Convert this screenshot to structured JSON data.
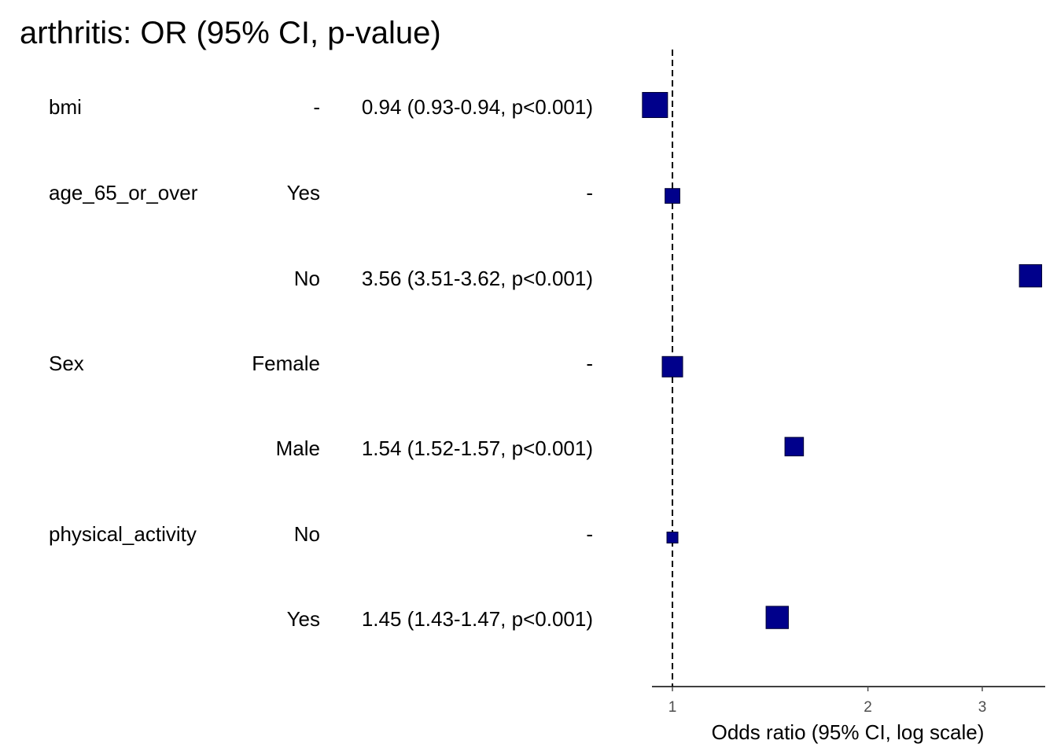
{
  "title": "arthritis: OR (95% CI, p-value)",
  "colors": {
    "point_fill": "#00008B",
    "point_stroke": "#000033",
    "reference_line": "#000000",
    "axis": "#000000",
    "tick_label": "#4D4D4D"
  },
  "chart_data": {
    "type": "scatter",
    "subtype": "forest-plot",
    "title": "arthritis: OR (95% CI, p-value)",
    "xlabel": "Odds ratio (95% CI, log scale)",
    "x_scale": "log",
    "xlim": [
      0.93,
      3.75
    ],
    "x_ticks": [
      1,
      2,
      3
    ],
    "x_tick_labels": [
      "1",
      "2",
      "3"
    ],
    "reference_value": 1,
    "grid": false,
    "legend": "none",
    "rows": [
      {
        "variable": "bmi",
        "level": "-",
        "or_text": "0.94 (0.93-0.94, p<0.001)",
        "or": 0.94,
        "ci_low": 0.93,
        "ci_high": 0.94,
        "weight": 1.0
      },
      {
        "variable": "age_65_or_over",
        "level": "Yes",
        "or_text": "-",
        "or": 1,
        "ci_low": 1,
        "ci_high": 1,
        "weight": 0.45
      },
      {
        "variable": "",
        "level": "No",
        "or_text": "3.56 (3.51-3.62, p<0.001)",
        "or": 3.56,
        "ci_low": 3.51,
        "ci_high": 3.62,
        "weight": 0.85
      },
      {
        "variable": "Sex",
        "level": "Female",
        "or_text": "-",
        "or": 1,
        "ci_low": 1,
        "ci_high": 1,
        "weight": 0.75
      },
      {
        "variable": "",
        "level": "Male",
        "or_text": "1.54 (1.52-1.57, p<0.001)",
        "or": 1.54,
        "ci_low": 1.52,
        "ci_high": 1.57,
        "weight": 0.65
      },
      {
        "variable": "physical_activity",
        "level": "No",
        "or_text": "-",
        "or": 1,
        "ci_low": 1,
        "ci_high": 1,
        "weight": 0.25
      },
      {
        "variable": "",
        "level": "Yes",
        "or_text": "1.45 (1.43-1.47, p<0.001)",
        "or": 1.45,
        "ci_low": 1.43,
        "ci_high": 1.47,
        "weight": 0.85
      }
    ]
  }
}
